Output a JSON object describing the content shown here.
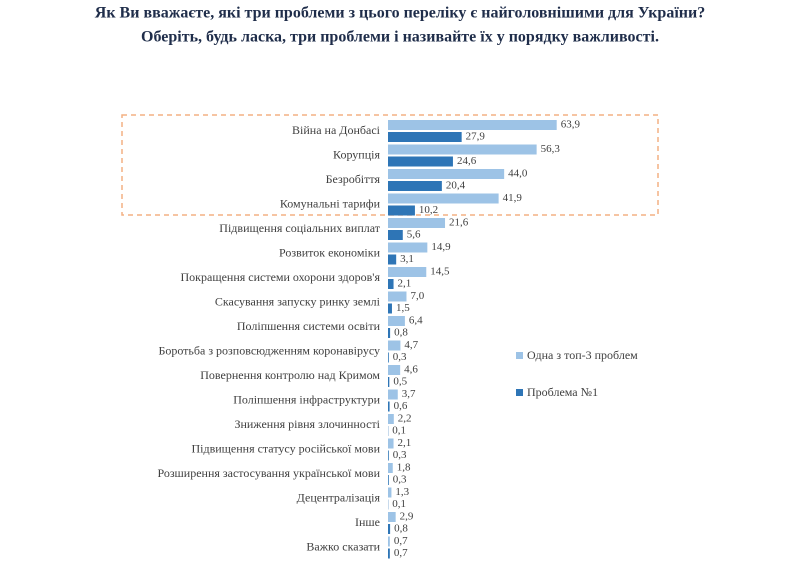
{
  "chart_data": {
    "type": "bar",
    "orientation": "horizontal",
    "title": "Як Ви вважаєте, які три проблеми з цього переліку є найголовнішими для України?",
    "subtitle": "Оберіть, будь ласка, три проблеми і називайте їх у порядку важливості.",
    "categories": [
      "Війна на Донбасі",
      "Корупція",
      "Безробіття",
      "Комунальні тарифи",
      "Підвищення соціальних виплат",
      "Розвиток економіки",
      "Покращення системи охорони здоров'я",
      "Скасування запуску ринку землі",
      "Поліпшення системи освіти",
      "Боротьба з розповсюдженням коронавірусу",
      "Повернення контролю над Кримом",
      "Поліпшення інфраструктури",
      "Зниження рівня злочинності",
      "Підвищення статусу російської мови",
      "Розширення застосування української мови",
      "Децентралізація",
      "Інше",
      "Важко сказати"
    ],
    "series": [
      {
        "name": "Одна з топ-3 проблем",
        "color": "#9dc3e6",
        "values": [
          63.9,
          56.3,
          44.0,
          41.9,
          21.6,
          14.9,
          14.5,
          7.0,
          6.4,
          4.7,
          4.6,
          3.7,
          2.2,
          2.1,
          1.8,
          1.3,
          2.9,
          0.7
        ],
        "value_labels": [
          "63,9",
          "56,3",
          "44,0",
          "41,9",
          "21,6",
          "14,9",
          "14,5",
          "7,0",
          "6,4",
          "4,7",
          "4,6",
          "3,7",
          "2,2",
          "2,1",
          "1,8",
          "1,3",
          "2,9",
          "0,7"
        ]
      },
      {
        "name": "Проблема №1",
        "color": "#2e75b6",
        "values": [
          27.9,
          24.6,
          20.4,
          10.2,
          5.6,
          3.1,
          2.1,
          1.5,
          0.8,
          0.3,
          0.5,
          0.6,
          0.1,
          0.3,
          0.3,
          0.1,
          0.8,
          0.7
        ],
        "value_labels": [
          "27,9",
          "24,6",
          "20,4",
          "10,2",
          "5,6",
          "3,1",
          "2,1",
          "1,5",
          "0,8",
          "0,3",
          "0,5",
          "0,6",
          "0,1",
          "0,3",
          "0,3",
          "0,1",
          "0,8",
          "0,7"
        ]
      }
    ],
    "xlim": [
      0,
      100
    ],
    "legend": "right"
  }
}
